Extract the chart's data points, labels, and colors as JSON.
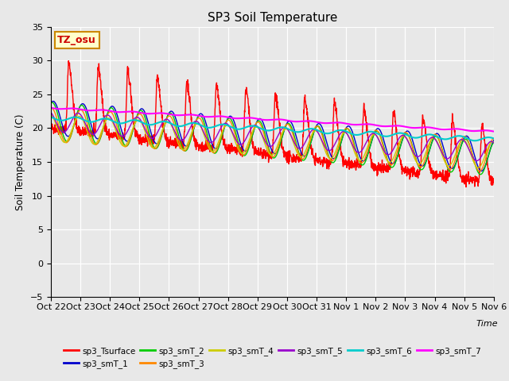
{
  "title": "SP3 Soil Temperature",
  "ylabel": "Soil Temperature (C)",
  "xlabel": "Time",
  "annotation": "TZ_osu",
  "ylim": [
    -5,
    35
  ],
  "background_color": "#e8e8e8",
  "plot_bg_color": "#e8e8e8",
  "series_colors": {
    "sp3_Tsurface": "#ff0000",
    "sp3_smT_1": "#0000cc",
    "sp3_smT_2": "#00cc00",
    "sp3_smT_3": "#ff8800",
    "sp3_smT_4": "#cccc00",
    "sp3_smT_5": "#9900cc",
    "sp3_smT_6": "#00cccc",
    "sp3_smT_7": "#ff00ff"
  },
  "xtick_labels": [
    "Oct 22",
    "Oct 23",
    "Oct 24",
    "Oct 25",
    "Oct 26",
    "Oct 27",
    "Oct 28",
    "Oct 29",
    "Oct 30",
    "Oct 31",
    "Nov 1",
    "Nov 2",
    "Nov 3",
    "Nov 4",
    "Nov 5",
    "Nov 6"
  ],
  "num_days": 15,
  "points_per_day": 144
}
